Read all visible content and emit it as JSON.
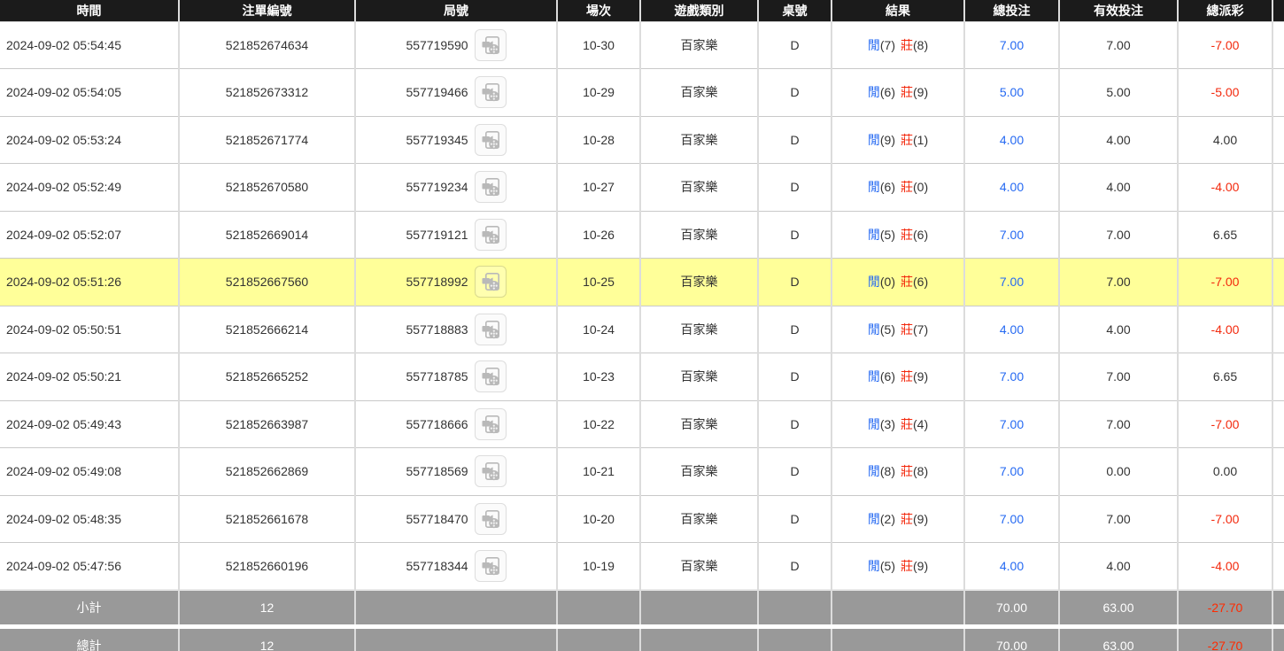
{
  "columns": [
    {
      "key": "time",
      "label": "時間"
    },
    {
      "key": "bet_id",
      "label": "注單編號"
    },
    {
      "key": "round",
      "label": "局號"
    },
    {
      "key": "session",
      "label": "場次"
    },
    {
      "key": "game_type",
      "label": "遊戲類別"
    },
    {
      "key": "table_no",
      "label": "桌號"
    },
    {
      "key": "result",
      "label": "結果"
    },
    {
      "key": "total_bet",
      "label": "總投注"
    },
    {
      "key": "valid_bet",
      "label": "有效投注"
    },
    {
      "key": "payout",
      "label": "總派彩"
    },
    {
      "key": "overflow",
      "label": ""
    }
  ],
  "labels": {
    "player": "閒",
    "banker": "莊"
  },
  "icons": {
    "round_video": "video-icon"
  },
  "colors": {
    "header_bg": "#1b1b1b",
    "player_blue": "#2569f2",
    "banker_red": "#f3290d",
    "highlight_yellow": "#ffff99",
    "footer_gray": "#999999",
    "negative_red": "#f3290d"
  },
  "rows": [
    {
      "time": "2024-09-02 05:54:45",
      "bet_id": "521852674634",
      "round": "557719590",
      "session": "10-30",
      "game_type": "百家樂",
      "table_no": "D",
      "pnum": "(7)",
      "bnum": "(8)",
      "total_bet": "7.00",
      "valid_bet": "7.00",
      "payout": "-7.00",
      "highlighted": false
    },
    {
      "time": "2024-09-02 05:54:05",
      "bet_id": "521852673312",
      "round": "557719466",
      "session": "10-29",
      "game_type": "百家樂",
      "table_no": "D",
      "pnum": "(6)",
      "bnum": "(9)",
      "total_bet": "5.00",
      "valid_bet": "5.00",
      "payout": "-5.00",
      "highlighted": false
    },
    {
      "time": "2024-09-02 05:53:24",
      "bet_id": "521852671774",
      "round": "557719345",
      "session": "10-28",
      "game_type": "百家樂",
      "table_no": "D",
      "pnum": "(9)",
      "bnum": "(1)",
      "total_bet": "4.00",
      "valid_bet": "4.00",
      "payout": "4.00",
      "highlighted": false
    },
    {
      "time": "2024-09-02 05:52:49",
      "bet_id": "521852670580",
      "round": "557719234",
      "session": "10-27",
      "game_type": "百家樂",
      "table_no": "D",
      "pnum": "(6)",
      "bnum": "(0)",
      "total_bet": "4.00",
      "valid_bet": "4.00",
      "payout": "-4.00",
      "highlighted": false
    },
    {
      "time": "2024-09-02 05:52:07",
      "bet_id": "521852669014",
      "round": "557719121",
      "session": "10-26",
      "game_type": "百家樂",
      "table_no": "D",
      "pnum": "(5)",
      "bnum": "(6)",
      "total_bet": "7.00",
      "valid_bet": "7.00",
      "payout": "6.65",
      "highlighted": false
    },
    {
      "time": "2024-09-02 05:51:26",
      "bet_id": "521852667560",
      "round": "557718992",
      "session": "10-25",
      "game_type": "百家樂",
      "table_no": "D",
      "pnum": "(0)",
      "bnum": "(6)",
      "total_bet": "7.00",
      "valid_bet": "7.00",
      "payout": "-7.00",
      "highlighted": true
    },
    {
      "time": "2024-09-02 05:50:51",
      "bet_id": "521852666214",
      "round": "557718883",
      "session": "10-24",
      "game_type": "百家樂",
      "table_no": "D",
      "pnum": "(5)",
      "bnum": "(7)",
      "total_bet": "4.00",
      "valid_bet": "4.00",
      "payout": "-4.00",
      "highlighted": false
    },
    {
      "time": "2024-09-02 05:50:21",
      "bet_id": "521852665252",
      "round": "557718785",
      "session": "10-23",
      "game_type": "百家樂",
      "table_no": "D",
      "pnum": "(6)",
      "bnum": "(9)",
      "total_bet": "7.00",
      "valid_bet": "7.00",
      "payout": "6.65",
      "highlighted": false
    },
    {
      "time": "2024-09-02 05:49:43",
      "bet_id": "521852663987",
      "round": "557718666",
      "session": "10-22",
      "game_type": "百家樂",
      "table_no": "D",
      "pnum": "(3)",
      "bnum": "(4)",
      "total_bet": "7.00",
      "valid_bet": "7.00",
      "payout": "-7.00",
      "highlighted": false
    },
    {
      "time": "2024-09-02 05:49:08",
      "bet_id": "521852662869",
      "round": "557718569",
      "session": "10-21",
      "game_type": "百家樂",
      "table_no": "D",
      "pnum": "(8)",
      "bnum": "(8)",
      "total_bet": "7.00",
      "valid_bet": "0.00",
      "payout": "0.00",
      "highlighted": false
    },
    {
      "time": "2024-09-02 05:48:35",
      "bet_id": "521852661678",
      "round": "557718470",
      "session": "10-20",
      "game_type": "百家樂",
      "table_no": "D",
      "pnum": "(2)",
      "bnum": "(9)",
      "total_bet": "7.00",
      "valid_bet": "7.00",
      "payout": "-7.00",
      "highlighted": false
    },
    {
      "time": "2024-09-02 05:47:56",
      "bet_id": "521852660196",
      "round": "557718344",
      "session": "10-19",
      "game_type": "百家樂",
      "table_no": "D",
      "pnum": "(5)",
      "bnum": "(9)",
      "total_bet": "4.00",
      "valid_bet": "4.00",
      "payout": "-4.00",
      "highlighted": false
    }
  ],
  "footer": [
    {
      "label": "小計",
      "count": "12",
      "total_bet": "70.00",
      "valid_bet": "63.00",
      "payout": "-27.70"
    },
    {
      "label": "總計",
      "count": "12",
      "total_bet": "70.00",
      "valid_bet": "63.00",
      "payout": "-27.70"
    }
  ]
}
